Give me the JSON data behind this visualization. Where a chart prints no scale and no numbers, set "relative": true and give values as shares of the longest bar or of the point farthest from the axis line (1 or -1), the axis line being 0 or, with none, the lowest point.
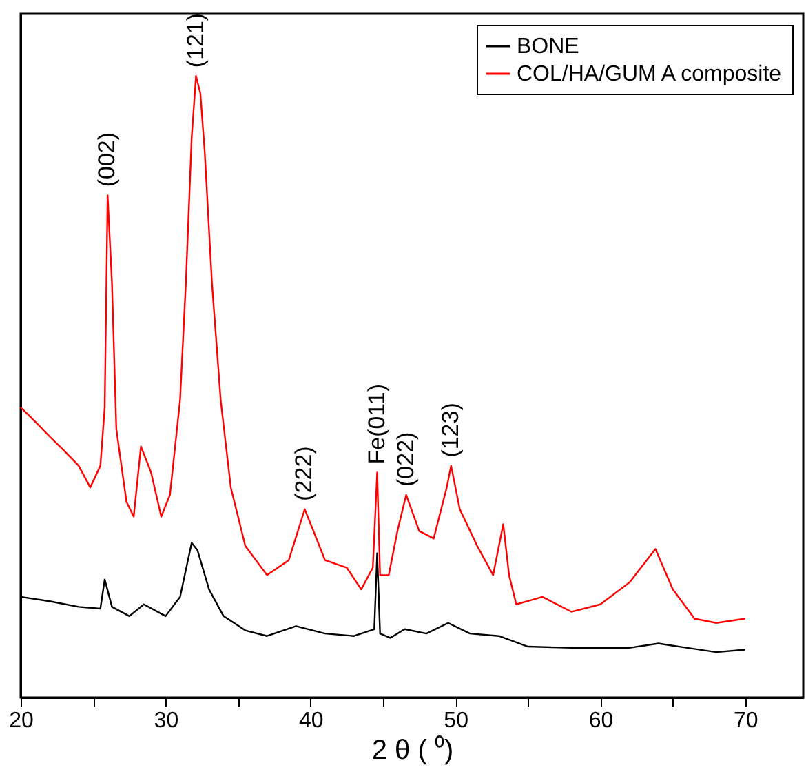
{
  "chart_data": {
    "type": "line",
    "xlabel": "2 θ ( ⁰)",
    "relative": true,
    "xlim": [
      20,
      74
    ],
    "xticks": [
      20,
      {
        "value": 25,
        "label": null
      },
      30,
      {
        "value": 35,
        "label": null
      },
      40,
      {
        "value": 45,
        "label": null
      },
      50,
      {
        "value": 55,
        "label": null
      },
      60,
      {
        "value": 65,
        "label": null
      },
      70
    ],
    "legend": "top right",
    "line_style": "solid",
    "marker": "none",
    "series": [
      {
        "name": "BONE",
        "color": "#000000",
        "x": [
          20,
          22,
          24,
          25.5,
          25.8,
          26.3,
          27.5,
          28.5,
          30,
          31,
          31.8,
          32.2,
          33,
          34,
          35.5,
          37,
          39,
          41,
          43,
          44.4,
          44.6,
          44.8,
          45.5,
          46.5,
          48,
          49.5,
          51,
          53,
          55,
          58,
          62,
          64,
          66,
          68,
          70
        ],
        "values": [
          0.162,
          0.155,
          0.146,
          0.143,
          0.19,
          0.146,
          0.131,
          0.15,
          0.131,
          0.162,
          0.249,
          0.237,
          0.174,
          0.131,
          0.108,
          0.099,
          0.115,
          0.103,
          0.099,
          0.11,
          0.232,
          0.103,
          0.096,
          0.11,
          0.103,
          0.12,
          0.103,
          0.099,
          0.082,
          0.08,
          0.08,
          0.087,
          0.08,
          0.073,
          0.077
        ]
      },
      {
        "name": "COL/HA/GUM A composite",
        "color": "#ff0000",
        "x": [
          20,
          21,
          22,
          23,
          24,
          24.8,
          25.5,
          25.8,
          26,
          26.3,
          26.6,
          27.3,
          27.8,
          28.3,
          29,
          29.7,
          30.3,
          31,
          31.4,
          31.8,
          32.1,
          32.4,
          32.7,
          33.2,
          33.8,
          34.5,
          35.5,
          37,
          38.5,
          39.6,
          40.2,
          41,
          42.5,
          43.5,
          44.3,
          44.6,
          44.8,
          45.4,
          46,
          46.6,
          47.5,
          48.5,
          49.4,
          49.7,
          50.3,
          51.5,
          52.6,
          53.3,
          53.7,
          54.2,
          56,
          58,
          60,
          62,
          63.8,
          65,
          66.5,
          68,
          70
        ],
        "values": [
          0.467,
          0.444,
          0.42,
          0.397,
          0.373,
          0.338,
          0.373,
          0.467,
          0.808,
          0.667,
          0.432,
          0.315,
          0.291,
          0.404,
          0.362,
          0.291,
          0.326,
          0.479,
          0.667,
          0.901,
          1,
          0.972,
          0.878,
          0.667,
          0.479,
          0.338,
          0.244,
          0.197,
          0.221,
          0.303,
          0.268,
          0.221,
          0.209,
          0.174,
          0.209,
          0.362,
          0.197,
          0.197,
          0.268,
          0.326,
          0.268,
          0.256,
          0.338,
          0.373,
          0.303,
          0.244,
          0.197,
          0.279,
          0.197,
          0.15,
          0.162,
          0.138,
          0.15,
          0.185,
          0.239,
          0.174,
          0.127,
          0.12,
          0.127
        ]
      }
    ],
    "annotations": [
      {
        "text": "(002)",
        "x": 26,
        "y": 0.808
      },
      {
        "text": "(121)",
        "x": 32.1,
        "y": 1
      },
      {
        "text": "(222)",
        "x": 39.6,
        "y": 0.303
      },
      {
        "text": "Fe(011)",
        "x": 44.6,
        "y": 0.362
      },
      {
        "text": "(022)",
        "x": 46.6,
        "y": 0.326
      },
      {
        "text": "(123)",
        "x": 49.7,
        "y": 0.373
      }
    ]
  }
}
